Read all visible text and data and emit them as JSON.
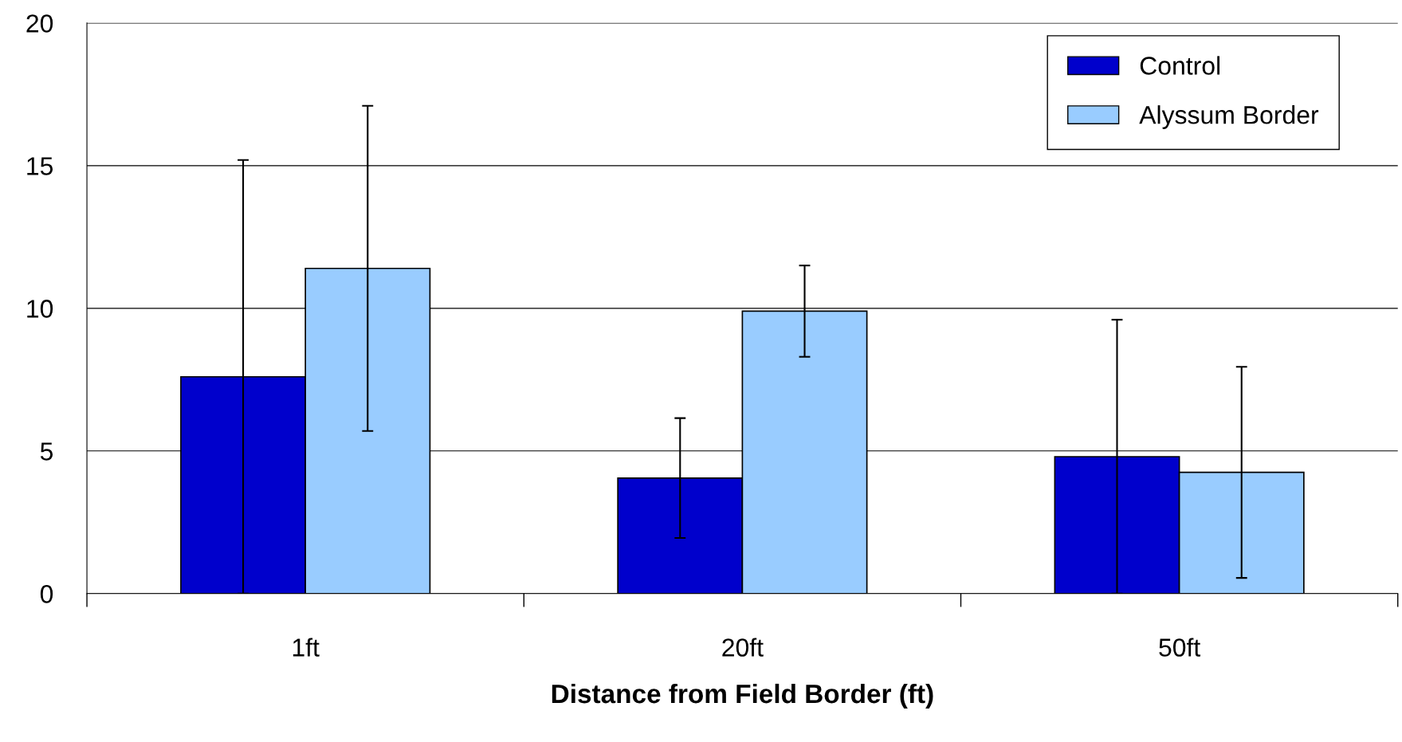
{
  "chart_data": {
    "type": "bar",
    "xlabel": "Distance from Field Border (ft)",
    "categories": [
      "1ft",
      "20ft",
      "50ft"
    ],
    "series": [
      {
        "name": "Control",
        "color": "#0000cc",
        "values": [
          7.6,
          4.05,
          4.8
        ],
        "errors": [
          7.6,
          2.1,
          4.8
        ]
      },
      {
        "name": "Alyssum Border",
        "color": "#99ccff",
        "values": [
          11.4,
          9.9,
          4.25
        ],
        "errors": [
          5.7,
          1.6,
          3.7
        ]
      }
    ],
    "ylim": [
      0,
      20
    ],
    "yticks": [
      0,
      5,
      10,
      15,
      20
    ],
    "grid": "y",
    "legend": "top right"
  }
}
